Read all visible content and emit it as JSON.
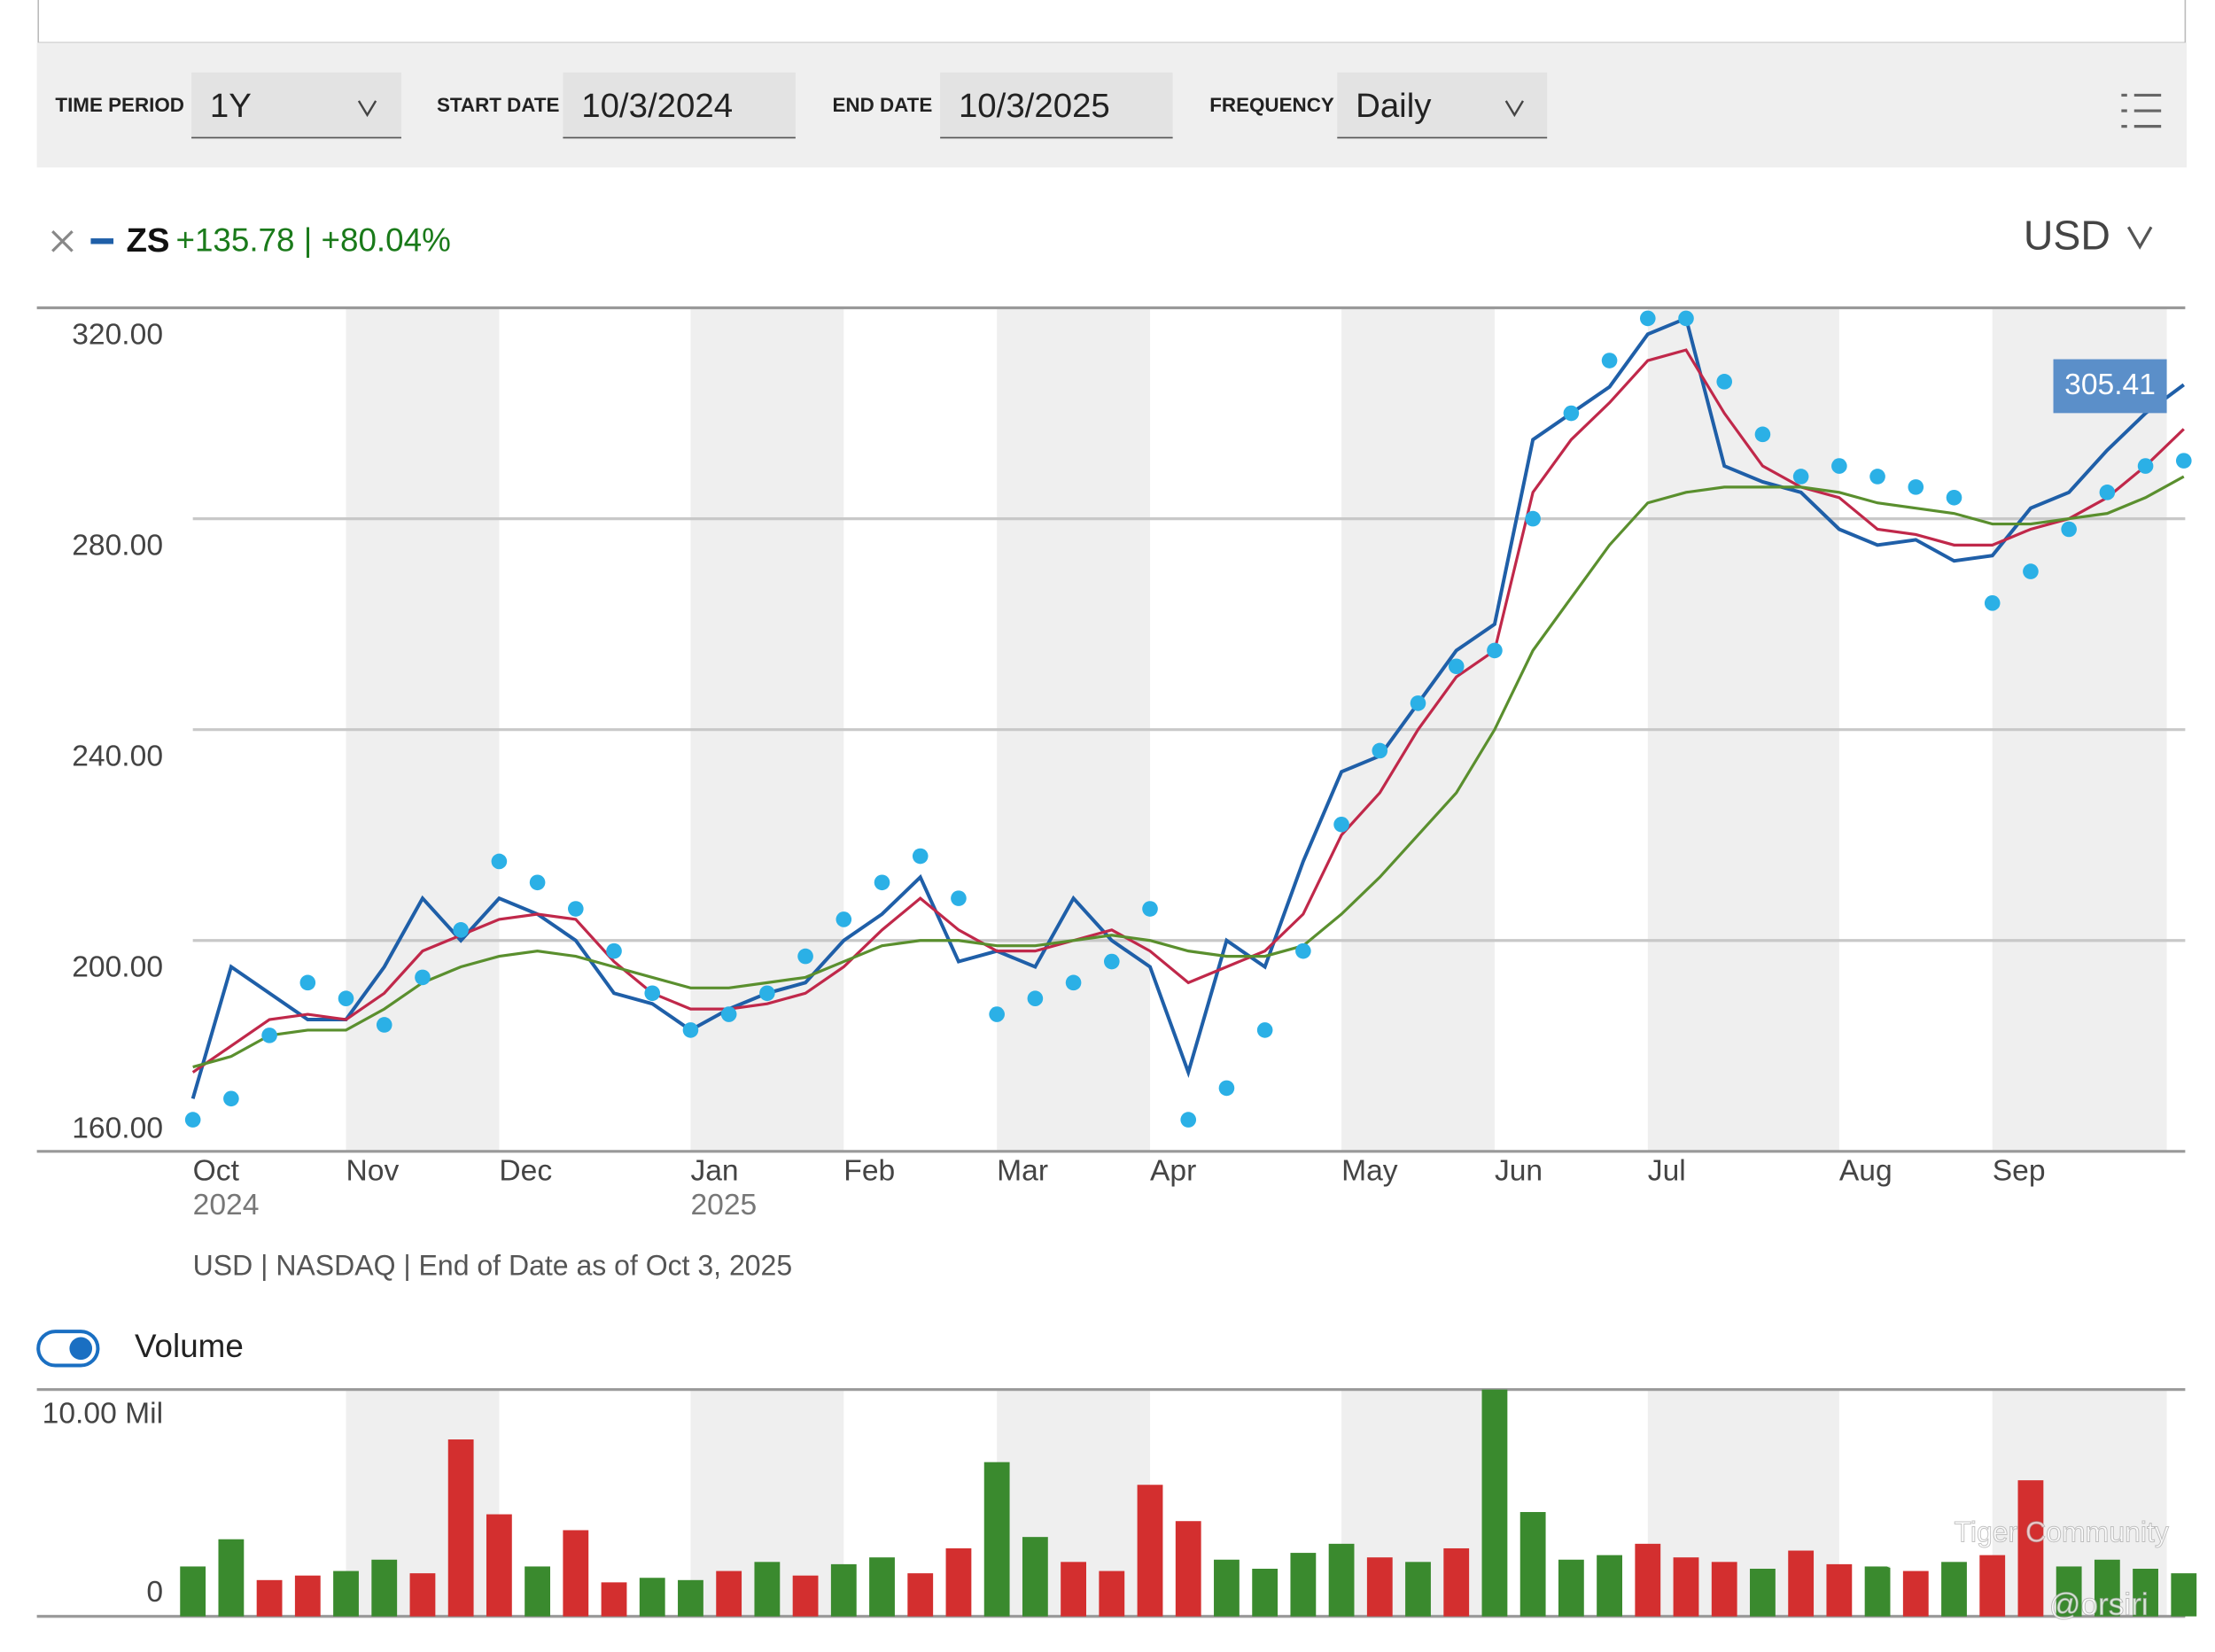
{
  "controls": {
    "time_period_label": "TIME PERIOD",
    "time_period": "1Y",
    "start_date_label": "START DATE",
    "start_date": "10/3/2024",
    "end_date_label": "END DATE",
    "end_date": "10/3/2025",
    "frequency_label": "FREQUENCY",
    "frequency": "Daily",
    "currency": "USD"
  },
  "legend": {
    "symbol": "ZS",
    "change": "+135.78 | +80.04%"
  },
  "chart_data": [
    {
      "type": "line",
      "categories": [
        "Oct",
        null,
        null,
        null,
        "Nov",
        null,
        null,
        null,
        "Dec",
        null,
        null,
        null,
        null,
        "Jan",
        null,
        null,
        null,
        "Feb",
        null,
        null,
        null,
        "Mar",
        null,
        null,
        null,
        "Apr",
        null,
        null,
        null,
        null,
        "May",
        null,
        null,
        null,
        "Jun",
        null,
        null,
        null,
        "Jul",
        null,
        null,
        null,
        null,
        "Aug",
        null,
        null,
        null,
        "Sep",
        null,
        null,
        null,
        null,
        null
      ],
      "year_labels": [
        "2024",
        null,
        null,
        null,
        null,
        null,
        null,
        null,
        null,
        null,
        null,
        null,
        null,
        "2025",
        null,
        null,
        null,
        null,
        null,
        null,
        null,
        null,
        null,
        null,
        null,
        null,
        null,
        null,
        null,
        null,
        null,
        null,
        null,
        null,
        null,
        null,
        null,
        null,
        null,
        null,
        null,
        null,
        null,
        null,
        null,
        null,
        null,
        null,
        null,
        null,
        null,
        null,
        null
      ],
      "series": [
        {
          "name": "ZS",
          "color": "#1f5fa8",
          "values": [
            170,
            195,
            190,
            185,
            185,
            195,
            208,
            200,
            208,
            205,
            200,
            190,
            188,
            183,
            187,
            190,
            192,
            200,
            205,
            212,
            196,
            198,
            195,
            208,
            200,
            195,
            175,
            200,
            195,
            215,
            232,
            235,
            245,
            255,
            260,
            295,
            300,
            305,
            315,
            318,
            290,
            287,
            285,
            278,
            275,
            276,
            272,
            273,
            282,
            285,
            293,
            300,
            305.41
          ]
        },
        {
          "color": "#c0284a",
          "values": [
            175,
            180,
            185,
            186,
            185,
            190,
            198,
            201,
            204,
            205,
            204,
            196,
            190,
            187,
            187,
            188,
            190,
            195,
            202,
            208,
            202,
            198,
            198,
            200,
            202,
            198,
            192,
            195,
            198,
            205,
            220,
            228,
            240,
            250,
            255,
            285,
            295,
            302,
            310,
            312,
            300,
            290,
            286,
            284,
            278,
            277,
            275,
            275,
            278,
            280,
            284,
            290,
            297
          ]
        },
        {
          "color": "#5a8f2e",
          "values": [
            176,
            178,
            182,
            183,
            183,
            187,
            192,
            195,
            197,
            198,
            197,
            195,
            193,
            191,
            191,
            192,
            193,
            196,
            199,
            200,
            200,
            199,
            199,
            200,
            201,
            200,
            198,
            197,
            197,
            199,
            205,
            212,
            220,
            228,
            240,
            255,
            265,
            275,
            283,
            285,
            286,
            286,
            286,
            285,
            283,
            282,
            281,
            279,
            279,
            280,
            281,
            284,
            288
          ]
        },
        {
          "color": "#2bb0e6",
          "marker": "dot",
          "values": [
            166,
            170,
            182,
            192,
            189,
            184,
            193,
            202,
            215,
            211,
            206,
            198,
            190,
            183,
            186,
            190,
            197,
            204,
            211,
            216,
            208,
            186,
            189,
            192,
            196,
            206,
            166,
            172,
            183,
            198,
            222,
            236,
            245,
            252,
            255,
            280,
            300,
            310,
            318,
            318,
            306,
            296,
            288,
            290,
            288,
            286,
            284,
            264,
            270,
            278,
            285,
            290,
            291
          ]
        }
      ],
      "ylim": [
        160,
        320
      ],
      "yticks": [
        {
          "value": 160,
          "label": "160.00"
        },
        {
          "value": 200,
          "label": "200.00"
        },
        {
          "value": 240,
          "label": "240.00"
        },
        {
          "value": 280,
          "label": "280.00"
        },
        {
          "value": 320,
          "label": "320.00"
        }
      ],
      "grid": true,
      "note": "USD | NASDAQ | End of Date as of Oct 3, 2025"
    },
    {
      "type": "bar",
      "title": "Volume",
      "values": [
        2.2,
        3.4,
        1.6,
        1.8,
        2.0,
        2.5,
        1.9,
        7.8,
        4.5,
        2.2,
        3.8,
        1.5,
        1.7,
        1.6,
        2.0,
        2.4,
        1.8,
        2.3,
        2.6,
        1.9,
        3.0,
        6.8,
        3.5,
        2.4,
        2.0,
        5.8,
        4.2,
        2.5,
        2.1,
        2.8,
        3.2,
        2.6,
        2.4,
        3.0,
        10.0,
        4.6,
        2.5,
        2.7,
        3.2,
        2.6,
        2.4,
        2.1,
        2.9,
        2.3,
        2.2,
        2.0,
        2.4,
        2.7,
        6.0,
        2.2,
        2.5,
        2.1,
        1.9
      ],
      "colors": [
        "#3a8a2e",
        "#3a8a2e",
        "#d32f2f",
        "#d32f2f",
        "#3a8a2e",
        "#3a8a2e",
        "#d32f2f",
        "#d32f2f",
        "#d32f2f",
        "#3a8a2e",
        "#d32f2f",
        "#d32f2f",
        "#3a8a2e",
        "#3a8a2e",
        "#d32f2f",
        "#3a8a2e",
        "#d32f2f",
        "#3a8a2e",
        "#3a8a2e",
        "#d32f2f",
        "#d32f2f",
        "#3a8a2e",
        "#3a8a2e",
        "#d32f2f",
        "#d32f2f",
        "#d32f2f",
        "#d32f2f",
        "#3a8a2e",
        "#3a8a2e",
        "#3a8a2e",
        "#3a8a2e",
        "#d32f2f",
        "#3a8a2e",
        "#d32f2f",
        "#3a8a2e",
        "#3a8a2e",
        "#3a8a2e",
        "#3a8a2e",
        "#d32f2f",
        "#d32f2f",
        "#d32f2f",
        "#3a8a2e",
        "#d32f2f",
        "#d32f2f",
        "#3a8a2e",
        "#d32f2f",
        "#3a8a2e",
        "#d32f2f",
        "#d32f2f",
        "#3a8a2e",
        "#3a8a2e",
        "#3a8a2e",
        "#3a8a2e"
      ],
      "ylim": [
        0,
        10
      ],
      "yticks": [
        0,
        {
          "value": 10,
          "label": "10.00 Mil"
        }
      ]
    }
  ],
  "watermark": {
    "text": "Tiger Community",
    "handle": "@orsiri"
  }
}
